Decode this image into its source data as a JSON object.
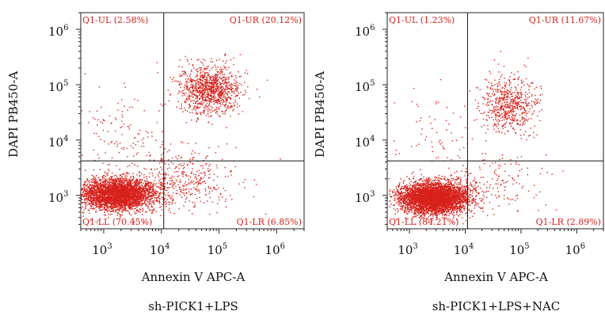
{
  "chart_data": [
    {
      "type": "scatter",
      "title": "",
      "caption": "sh-PICK1+LPS",
      "xlabel": "Annexin V APC-A",
      "ylabel": "DAPI PB450-A",
      "x_scale": "log",
      "y_scale": "log",
      "xlim": [
        400,
        3000000
      ],
      "ylim": [
        250,
        2000000
      ],
      "x_ticks": [
        {
          "base": "10",
          "exp": "3",
          "value": 1000
        },
        {
          "base": "10",
          "exp": "4",
          "value": 10000
        },
        {
          "base": "10",
          "exp": "5",
          "value": 100000
        },
        {
          "base": "10",
          "exp": "6",
          "value": 1000000
        }
      ],
      "y_ticks": [
        {
          "base": "10",
          "exp": "3",
          "value": 1000
        },
        {
          "base": "10",
          "exp": "4",
          "value": 10000
        },
        {
          "base": "10",
          "exp": "5",
          "value": 100000
        },
        {
          "base": "10",
          "exp": "6",
          "value": 1000000
        }
      ],
      "gate": {
        "x": 11000,
        "y": 4200
      },
      "quadrants": [
        {
          "label": "Q1-UL (2.58%)",
          "name": "Q1-UL",
          "percent": 2.58,
          "position": "top-left"
        },
        {
          "label": "Q1-UR (20.12%)",
          "name": "Q1-UR",
          "percent": 20.12,
          "position": "top-right"
        },
        {
          "label": "Q1-LL (70.45%)",
          "name": "Q1-LL",
          "percent": 70.45,
          "position": "bottom-left"
        },
        {
          "label": "Q1-LR (6.85%)",
          "name": "Q1-LR",
          "percent": 6.85,
          "position": "bottom-right"
        }
      ],
      "clusters": [
        {
          "cx": 1800,
          "cy": 1050,
          "sx": 0.32,
          "sy": 0.14,
          "weight": 0.7
        },
        {
          "cx": 70000,
          "cy": 80000,
          "sx": 0.26,
          "sy": 0.22,
          "weight": 0.2
        },
        {
          "cx": 30000,
          "cy": 2000,
          "sx": 0.42,
          "sy": 0.28,
          "weight": 0.069
        },
        {
          "cx": 2500,
          "cy": 15000,
          "sx": 0.4,
          "sy": 0.45,
          "weight": 0.026
        }
      ],
      "point_color": "#d8211b"
    },
    {
      "type": "scatter",
      "title": "",
      "caption": "sh-PICK1+LPS+NAC",
      "xlabel": "Annexin V APC-A",
      "ylabel": "DAPI PB450-A",
      "x_scale": "log",
      "y_scale": "log",
      "xlim": [
        400,
        3000000
      ],
      "ylim": [
        250,
        2000000
      ],
      "x_ticks": [
        {
          "base": "10",
          "exp": "3",
          "value": 1000
        },
        {
          "base": "10",
          "exp": "4",
          "value": 10000
        },
        {
          "base": "10",
          "exp": "5",
          "value": 100000
        },
        {
          "base": "10",
          "exp": "6",
          "value": 1000000
        }
      ],
      "y_ticks": [
        {
          "base": "10",
          "exp": "3",
          "value": 1000
        },
        {
          "base": "10",
          "exp": "4",
          "value": 10000
        },
        {
          "base": "10",
          "exp": "5",
          "value": 100000
        },
        {
          "base": "10",
          "exp": "6",
          "value": 1000000
        }
      ],
      "gate": {
        "x": 11000,
        "y": 4200
      },
      "quadrants": [
        {
          "label": "Q1-UL (1.23%)",
          "name": "Q1-UL",
          "percent": 1.23,
          "position": "top-left"
        },
        {
          "label": "Q1-UR (11.67%)",
          "name": "Q1-UR",
          "percent": 11.67,
          "position": "top-right"
        },
        {
          "label": "Q1-LL (84.21%)",
          "name": "Q1-LL",
          "percent": 84.21,
          "position": "bottom-left"
        },
        {
          "label": "Q1-LR (2.89%)",
          "name": "Q1-LR",
          "percent": 2.89,
          "position": "bottom-right"
        }
      ],
      "clusters": [
        {
          "cx": 2800,
          "cy": 900,
          "sx": 0.3,
          "sy": 0.14,
          "weight": 0.84
        },
        {
          "cx": 60000,
          "cy": 45000,
          "sx": 0.25,
          "sy": 0.25,
          "weight": 0.117
        },
        {
          "cx": 35000,
          "cy": 1800,
          "sx": 0.4,
          "sy": 0.25,
          "weight": 0.029
        },
        {
          "cx": 3000,
          "cy": 12000,
          "sx": 0.4,
          "sy": 0.45,
          "weight": 0.012
        }
      ],
      "point_color": "#d8211b"
    }
  ]
}
